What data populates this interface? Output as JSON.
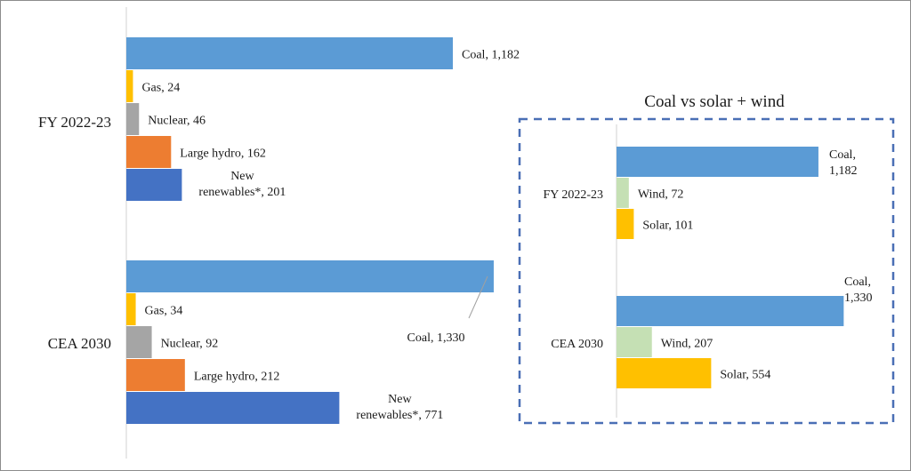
{
  "chart_data": [
    {
      "type": "bar",
      "orientation": "horizontal",
      "title": "",
      "categories": [
        "FY 2022-23",
        "CEA 2030"
      ],
      "series": [
        {
          "name": "Coal",
          "color": "#5b9bd5",
          "values": [
            1182,
            1330
          ],
          "labels": [
            [
              "Coal,  1,182"
            ],
            [
              "Coal,  1,330"
            ]
          ]
        },
        {
          "name": "Gas",
          "color": "#ffc000",
          "values": [
            24,
            34
          ],
          "labels": [
            [
              "Gas, 24"
            ],
            [
              "Gas, 34"
            ]
          ]
        },
        {
          "name": "Nuclear",
          "color": "#a5a5a5",
          "values": [
            46,
            92
          ],
          "labels": [
            [
              "Nuclear, 46"
            ],
            [
              "Nuclear, 92"
            ]
          ]
        },
        {
          "name": "Large hydro",
          "color": "#ed7d31",
          "values": [
            162,
            212
          ],
          "labels": [
            [
              "Large hydro, 162"
            ],
            [
              "Large hydro, 212"
            ]
          ]
        },
        {
          "name": "New renewables*",
          "color": "#4472c4",
          "values": [
            201,
            771
          ],
          "labels": [
            [
              "New",
              "renewables*, 201"
            ],
            [
              "New",
              "renewables*, 771"
            ]
          ]
        }
      ],
      "xlim": [
        0,
        1330
      ],
      "grid": false,
      "legend": "none"
    },
    {
      "type": "bar",
      "orientation": "horizontal",
      "title": "Coal vs solar + wind",
      "categories": [
        "FY 2022-23",
        "CEA 2030"
      ],
      "series": [
        {
          "name": "Coal",
          "color": "#5b9bd5",
          "values": [
            1182,
            1330
          ],
          "labels": [
            [
              "Coal,",
              "1,182"
            ],
            [
              "Coal,",
              "1,330"
            ]
          ]
        },
        {
          "name": "Wind",
          "color": "#c5e0b4",
          "values": [
            72,
            207
          ],
          "labels": [
            [
              "Wind, 72"
            ],
            [
              "Wind, 207"
            ]
          ]
        },
        {
          "name": "Solar",
          "color": "#ffc000",
          "values": [
            101,
            554
          ],
          "labels": [
            [
              "Solar, 101"
            ],
            [
              "Solar, 554"
            ]
          ]
        }
      ],
      "xlim": [
        0,
        1330
      ],
      "grid": false,
      "legend": "none",
      "border_color": "#4a6fb5"
    }
  ]
}
